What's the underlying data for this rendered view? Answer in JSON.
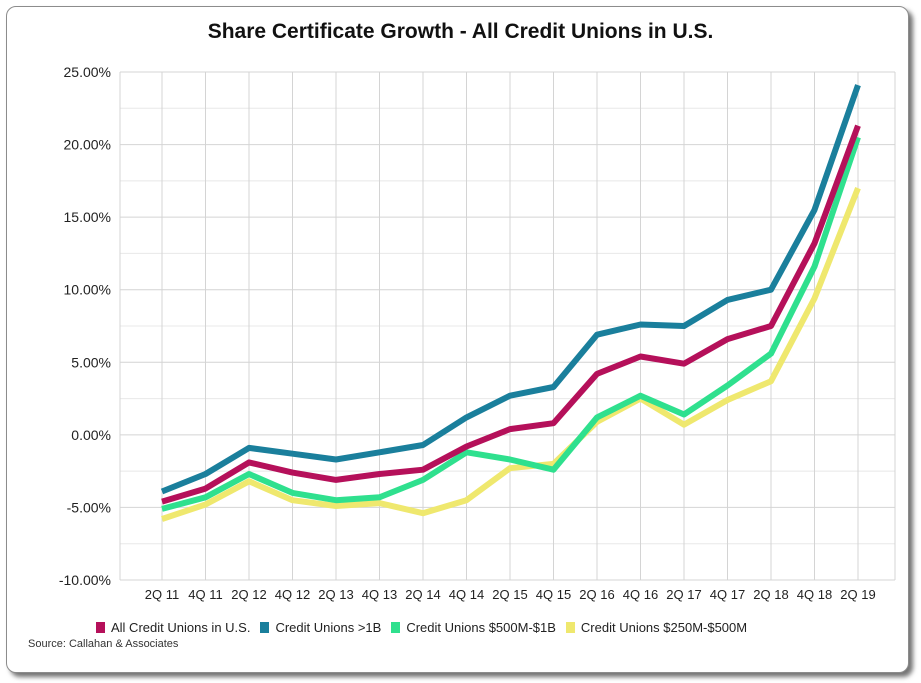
{
  "chart_data": {
    "type": "line",
    "title": "Share Certificate Growth - All Credit Unions in U.S.",
    "x": [
      "2Q 11",
      "4Q 11",
      "2Q 12",
      "4Q 12",
      "2Q 13",
      "4Q 13",
      "2Q 14",
      "4Q 14",
      "2Q 15",
      "4Q 15",
      "2Q 16",
      "4Q 16",
      "2Q 17",
      "4Q 17",
      "2Q 18",
      "4Q 18",
      "2Q 19"
    ],
    "ylim": [
      -10,
      25
    ],
    "yticks": [
      25,
      20,
      15,
      10,
      5,
      0,
      -5,
      -10
    ],
    "ytick_labels": [
      "25.00%",
      "20.00%",
      "15.00%",
      "10.00%",
      "5.00%",
      "0.00%",
      "-5.00%",
      "-10.00%"
    ],
    "grid": true,
    "legend_position": "bottom",
    "series": [
      {
        "name": "All Credit Unions in U.S.",
        "color": "#b5105a",
        "values": [
          -4.6,
          -3.7,
          -1.9,
          -2.6,
          -3.1,
          -2.7,
          -2.4,
          -0.8,
          0.4,
          0.8,
          4.2,
          5.4,
          4.9,
          6.6,
          7.5,
          13.2,
          21.3
        ]
      },
      {
        "name": "Credit Unions >1B",
        "color": "#1a7f9c",
        "values": [
          -3.9,
          -2.7,
          -0.9,
          -1.3,
          -1.7,
          -1.2,
          -0.7,
          1.2,
          2.7,
          3.3,
          6.9,
          7.6,
          7.5,
          9.3,
          10.0,
          15.5,
          24.1
        ]
      },
      {
        "name": "Credit Unions $500M-$1B",
        "color": "#2fe08e",
        "values": [
          -5.1,
          -4.3,
          -2.7,
          -4.0,
          -4.5,
          -4.3,
          -3.1,
          -1.2,
          -1.7,
          -2.4,
          1.2,
          2.7,
          1.4,
          3.4,
          5.6,
          11.6,
          20.5
        ]
      },
      {
        "name": "Credit Unions $250M-$500M",
        "color": "#efe86e",
        "values": [
          -5.8,
          -4.8,
          -3.2,
          -4.5,
          -4.9,
          -4.7,
          -5.4,
          -4.5,
          -2.3,
          -2.0,
          0.9,
          2.5,
          0.7,
          2.4,
          3.7,
          9.4,
          17.0
        ]
      }
    ]
  },
  "source": "Source: Callahan & Associates"
}
